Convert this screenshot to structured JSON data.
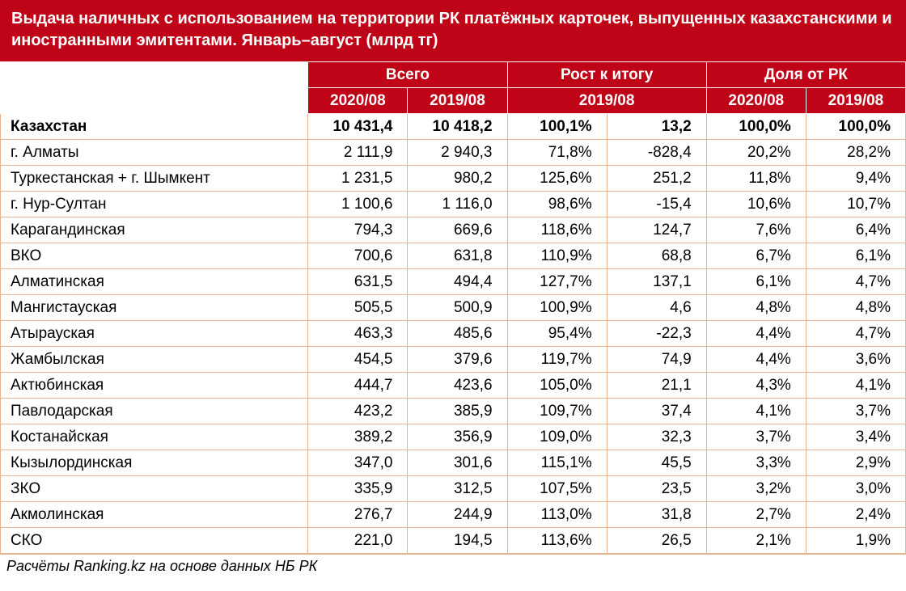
{
  "title": "Выдача наличных с использованием на территории РК платёжных карточек, выпущенных казахстанскими и иностранными эмитентами. Январь–август (млрд тг)",
  "footnote": "Расчёты Ranking.kz на основе данных НБ РК",
  "styling": {
    "header_bg": "#c00418",
    "header_fg": "#ffffff",
    "cell_border": "#e8b48f",
    "body_bg": "#ffffff",
    "title_fontsize_pt": 15,
    "cell_fontsize_pt": 14
  },
  "columns": {
    "group1": "Всего",
    "group2": "Рост к итогу",
    "group3": "Доля от РК",
    "sub": {
      "a": "2020/08",
      "b": "2019/08",
      "c": "2019/08",
      "d": "2020/08",
      "e": "2019/08"
    }
  },
  "rows": [
    {
      "region": "Казахстан",
      "total": true,
      "v1": "10 431,4",
      "v2": "10 418,2",
      "v3": "100,1%",
      "v4": "13,2",
      "v5": "100,0%",
      "v6": "100,0%"
    },
    {
      "region": "г. Алматы",
      "v1": "2 111,9",
      "v2": "2 940,3",
      "v3": "71,8%",
      "v4": "-828,4",
      "v5": "20,2%",
      "v6": "28,2%"
    },
    {
      "region": "Туркестанская + г. Шымкент",
      "v1": "1 231,5",
      "v2": "980,2",
      "v3": "125,6%",
      "v4": "251,2",
      "v5": "11,8%",
      "v6": "9,4%"
    },
    {
      "region": "г. Нур-Султан",
      "v1": "1 100,6",
      "v2": "1 116,0",
      "v3": "98,6%",
      "v4": "-15,4",
      "v5": "10,6%",
      "v6": "10,7%"
    },
    {
      "region": "Карагандинская",
      "v1": "794,3",
      "v2": "669,6",
      "v3": "118,6%",
      "v4": "124,7",
      "v5": "7,6%",
      "v6": "6,4%"
    },
    {
      "region": "ВКО",
      "v1": "700,6",
      "v2": "631,8",
      "v3": "110,9%",
      "v4": "68,8",
      "v5": "6,7%",
      "v6": "6,1%"
    },
    {
      "region": "Алматинская",
      "v1": "631,5",
      "v2": "494,4",
      "v3": "127,7%",
      "v4": "137,1",
      "v5": "6,1%",
      "v6": "4,7%"
    },
    {
      "region": "Мангистауская",
      "v1": "505,5",
      "v2": "500,9",
      "v3": "100,9%",
      "v4": "4,6",
      "v5": "4,8%",
      "v6": "4,8%"
    },
    {
      "region": "Атырауская",
      "v1": "463,3",
      "v2": "485,6",
      "v3": "95,4%",
      "v4": "-22,3",
      "v5": "4,4%",
      "v6": "4,7%"
    },
    {
      "region": "Жамбылская",
      "v1": "454,5",
      "v2": "379,6",
      "v3": "119,7%",
      "v4": "74,9",
      "v5": "4,4%",
      "v6": "3,6%"
    },
    {
      "region": "Актюбинская",
      "v1": "444,7",
      "v2": "423,6",
      "v3": "105,0%",
      "v4": "21,1",
      "v5": "4,3%",
      "v6": "4,1%"
    },
    {
      "region": "Павлодарская",
      "v1": "423,2",
      "v2": "385,9",
      "v3": "109,7%",
      "v4": "37,4",
      "v5": "4,1%",
      "v6": "3,7%"
    },
    {
      "region": "Костанайская",
      "v1": "389,2",
      "v2": "356,9",
      "v3": "109,0%",
      "v4": "32,3",
      "v5": "3,7%",
      "v6": "3,4%"
    },
    {
      "region": "Кызылординская",
      "v1": "347,0",
      "v2": "301,6",
      "v3": "115,1%",
      "v4": "45,5",
      "v5": "3,3%",
      "v6": "2,9%"
    },
    {
      "region": "ЗКО",
      "v1": "335,9",
      "v2": "312,5",
      "v3": "107,5%",
      "v4": "23,5",
      "v5": "3,2%",
      "v6": "3,0%"
    },
    {
      "region": "Акмолинская",
      "v1": "276,7",
      "v2": "244,9",
      "v3": "113,0%",
      "v4": "31,8",
      "v5": "2,7%",
      "v6": "2,4%"
    },
    {
      "region": "СКО",
      "v1": "221,0",
      "v2": "194,5",
      "v3": "113,6%",
      "v4": "26,5",
      "v5": "2,1%",
      "v6": "1,9%"
    }
  ]
}
